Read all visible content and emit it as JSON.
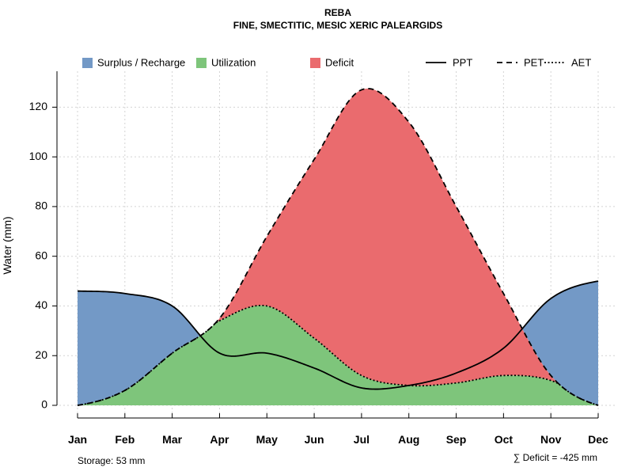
{
  "chart_data": {
    "type": "area",
    "title": "REBA",
    "subtitle": "FINE, SMECTITIC, MESIC XERIC PALEARGIDS",
    "ylabel": "Water (mm)",
    "xlabel": "",
    "categories": [
      "Jan",
      "Feb",
      "Mar",
      "Apr",
      "May",
      "Jun",
      "Jul",
      "Aug",
      "Sep",
      "Oct",
      "Nov",
      "Dec"
    ],
    "ylim": [
      0,
      130
    ],
    "yticks": [
      0,
      20,
      40,
      60,
      80,
      100,
      120
    ],
    "grid": true,
    "series": [
      {
        "name": "PPT",
        "style": "solid",
        "values": [
          46,
          45,
          40,
          21,
          21,
          15,
          7,
          8,
          13,
          23,
          43,
          50
        ]
      },
      {
        "name": "PET",
        "style": "dashed",
        "values": [
          0,
          6,
          21,
          35,
          68,
          99,
          127,
          114,
          80,
          45,
          12,
          0
        ]
      },
      {
        "name": "AET",
        "style": "dotted",
        "values": [
          0,
          6,
          21,
          34,
          40,
          27,
          12,
          8,
          9,
          12,
          10,
          0
        ]
      }
    ],
    "legend": [
      {
        "label": "Surplus / Recharge",
        "color": "#7399c6",
        "kind": "box"
      },
      {
        "label": "Utilization",
        "color": "#7ec57b",
        "kind": "box"
      },
      {
        "label": "Deficit",
        "color": "#ea6b6e",
        "kind": "box"
      },
      {
        "label": "PPT",
        "kind": "line",
        "dash": "solid"
      },
      {
        "label": "PET",
        "kind": "line",
        "dash": "dashed"
      },
      {
        "label": "AET",
        "kind": "line",
        "dash": "dotted"
      }
    ],
    "legend_position": "top",
    "colors": {
      "surplus": "#7399c6",
      "utilization": "#7ec57b",
      "deficit": "#ea6b6e",
      "grid": "#d3d3d3"
    },
    "annotations": {
      "storage": "Storage: 53 mm",
      "deficit": "∑ Deficit = -425 mm"
    }
  }
}
